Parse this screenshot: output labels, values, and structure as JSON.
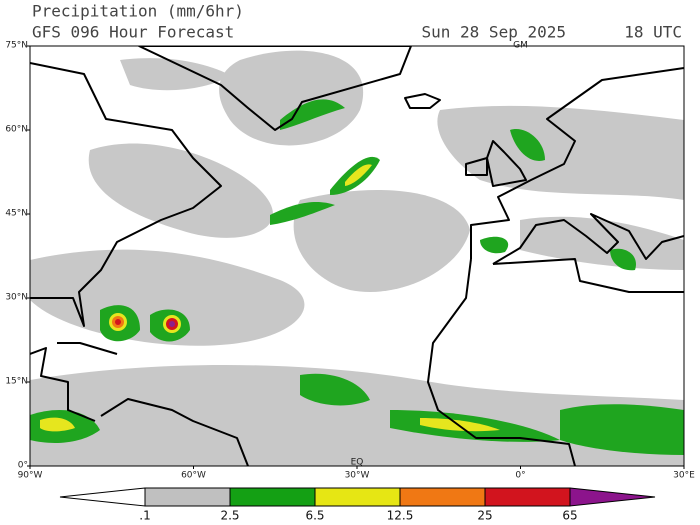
{
  "header": {
    "title": "Precipitation (mm/6hr)",
    "subtitle": "GFS 096 Hour Forecast",
    "date": "Sun 28 Sep 2025",
    "time": "18 UTC"
  },
  "map": {
    "lonlim": [
      -90,
      30
    ],
    "latlim": [
      0,
      75
    ],
    "lat_ticks": [
      {
        "value": 0,
        "label": "0°"
      },
      {
        "value": 15,
        "label": "15°N"
      },
      {
        "value": 30,
        "label": "30°N"
      },
      {
        "value": 45,
        "label": "45°N"
      },
      {
        "value": 60,
        "label": "60°N"
      },
      {
        "value": 75,
        "label": "75°N"
      }
    ],
    "lon_ticks": [
      {
        "value": -90,
        "label": "90°W"
      },
      {
        "value": -60,
        "label": "60°W"
      },
      {
        "value": -30,
        "label": "30°W"
      },
      {
        "value": 0,
        "label": "0°"
      },
      {
        "value": 30,
        "label": "30°E"
      }
    ],
    "markers": [
      {
        "label": "GM",
        "lon": 0,
        "lat": 75
      },
      {
        "label": "EQ",
        "lon": -30,
        "lat": 0
      }
    ]
  },
  "colorbar": {
    "ticks": [
      {
        "value": 0.1,
        "label": ".1"
      },
      2.5,
      6.5,
      12.5,
      25,
      65
    ],
    "colors": [
      "#ffffff",
      "#c0c0c0",
      "#14a014",
      "#e6e614",
      "#f07814",
      "#d2141e",
      "#8c148c"
    ]
  }
}
